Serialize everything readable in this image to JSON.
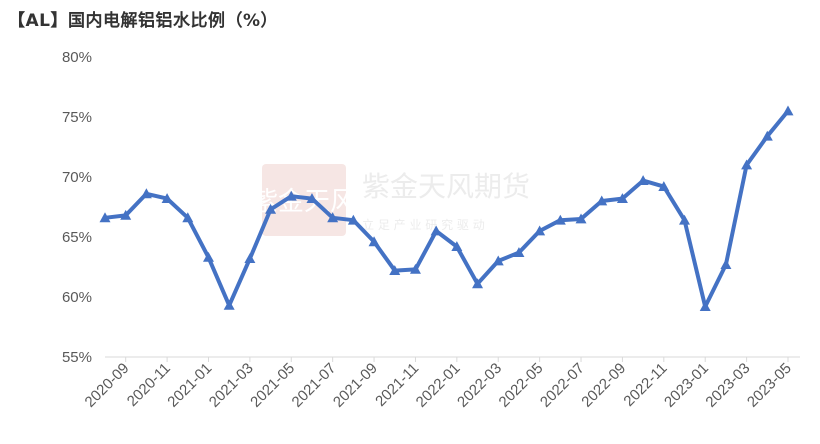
{
  "title": "【AL】国内电解铝铝水比例（%）",
  "watermark": {
    "name": "紫金天风期货",
    "slogan": "立 足 产 业   研 究 驱 动",
    "seal": "紫金天风"
  },
  "chart_data": {
    "type": "line",
    "title": "【AL】国内电解铝铝水比例（%）",
    "xlabel": "",
    "ylabel": "",
    "ylim": [
      55,
      80
    ],
    "yticks": [
      55,
      60,
      65,
      70,
      75,
      80
    ],
    "ytick_labels": [
      "55%",
      "60%",
      "65%",
      "70%",
      "75%",
      "80%"
    ],
    "grid": false,
    "legend": "none",
    "color": "#4472C4",
    "marker": "triangle",
    "x": [
      "2020-08",
      "2020-09",
      "2020-10",
      "2020-11",
      "2020-12",
      "2021-01",
      "2021-02",
      "2021-03",
      "2021-04",
      "2021-05",
      "2021-06",
      "2021-07",
      "2021-08",
      "2021-09",
      "2021-10",
      "2021-11",
      "2021-12",
      "2022-01",
      "2022-02",
      "2022-03",
      "2022-04",
      "2022-05",
      "2022-06",
      "2022-07",
      "2022-08",
      "2022-09",
      "2022-10",
      "2022-11",
      "2022-12",
      "2023-01",
      "2023-02",
      "2023-03",
      "2023-04",
      "2023-05"
    ],
    "xtick_labels": [
      "2020-09",
      "2020-11",
      "2021-01",
      "2021-03",
      "2021-05",
      "2021-07",
      "2021-09",
      "2021-11",
      "2022-01",
      "2022-03",
      "2022-05",
      "2022-07",
      "2022-09",
      "2022-11",
      "2023-01",
      "2023-03",
      "2023-05"
    ],
    "series": [
      {
        "values": [
          66.6,
          66.8,
          68.6,
          68.2,
          66.6,
          63.3,
          59.3,
          63.2,
          67.3,
          68.4,
          68.2,
          66.6,
          66.4,
          64.6,
          62.2,
          62.3,
          65.5,
          64.2,
          61.1,
          63.0,
          63.7,
          65.5,
          66.4,
          66.5,
          68.0,
          68.2,
          69.7,
          69.2,
          66.4,
          59.2,
          62.7,
          71.0,
          73.4,
          75.5
        ]
      }
    ]
  }
}
